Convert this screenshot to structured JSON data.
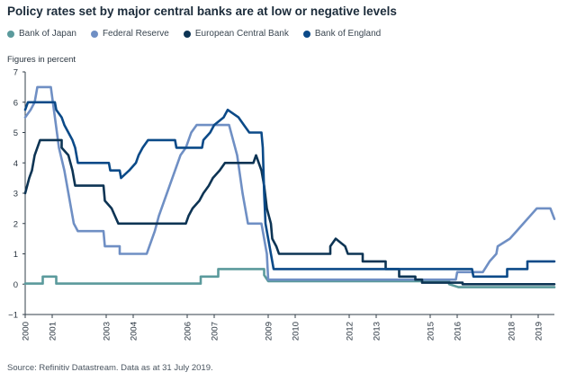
{
  "title": "Policy rates set by major central banks are at low or negative levels",
  "ylabel_note": "Figures in percent",
  "source": "Source: Refinitiv Datastream. Data as at 31 July 2019.",
  "legend": [
    {
      "name": "Bank of Japan",
      "color": "#5b9a9c"
    },
    {
      "name": "Federal Reserve",
      "color": "#6f8fc4"
    },
    {
      "name": "European Central Bank",
      "color": "#0d3454"
    },
    {
      "name": "Bank of England",
      "color": "#0b4a88"
    }
  ],
  "chart_data": {
    "type": "line",
    "ylim": [
      -1,
      7
    ],
    "yticks": [
      -1,
      0,
      1,
      2,
      3,
      4,
      5,
      6,
      7
    ],
    "ytick_labels": [
      "−1",
      "0",
      "1",
      "2",
      "3",
      "4",
      "5",
      "6",
      "7"
    ],
    "xlim": [
      2000,
      2019.6
    ],
    "xticks": [
      2000,
      2001,
      2003,
      2004,
      2006,
      2007,
      2009,
      2010,
      2012,
      2013,
      2015,
      2016,
      2018,
      2019
    ],
    "xtick_labels": [
      "2000",
      "2001",
      "2003",
      "2004",
      "2006",
      "2007",
      "2009",
      "2010",
      "2012",
      "2013",
      "2015",
      "2016",
      "2018",
      "2019"
    ],
    "grid": false,
    "legend_position": "top",
    "series": [
      {
        "name": "Bank of Japan",
        "color": "#5b9a9c",
        "points": [
          [
            2000.0,
            0.02
          ],
          [
            2000.65,
            0.02
          ],
          [
            2000.65,
            0.25
          ],
          [
            2001.15,
            0.25
          ],
          [
            2001.15,
            0.02
          ],
          [
            2006.5,
            0.02
          ],
          [
            2006.5,
            0.25
          ],
          [
            2007.15,
            0.25
          ],
          [
            2007.15,
            0.5
          ],
          [
            2008.85,
            0.5
          ],
          [
            2008.85,
            0.3
          ],
          [
            2009.0,
            0.1
          ],
          [
            2015.7,
            0.1
          ],
          [
            2015.7,
            0.0
          ],
          [
            2016.05,
            -0.1
          ],
          [
            2019.6,
            -0.1
          ]
        ]
      },
      {
        "name": "Federal Reserve",
        "color": "#6f8fc4",
        "points": [
          [
            2000.0,
            5.5
          ],
          [
            2000.2,
            5.75
          ],
          [
            2000.35,
            6.0
          ],
          [
            2000.45,
            6.5
          ],
          [
            2000.95,
            6.5
          ],
          [
            2001.1,
            5.5
          ],
          [
            2001.25,
            4.5
          ],
          [
            2001.45,
            3.75
          ],
          [
            2001.6,
            3.0
          ],
          [
            2001.8,
            2.0
          ],
          [
            2001.95,
            1.75
          ],
          [
            2002.9,
            1.75
          ],
          [
            2002.95,
            1.25
          ],
          [
            2003.5,
            1.25
          ],
          [
            2003.5,
            1.0
          ],
          [
            2004.5,
            1.0
          ],
          [
            2004.6,
            1.25
          ],
          [
            2004.8,
            1.75
          ],
          [
            2004.95,
            2.25
          ],
          [
            2005.15,
            2.75
          ],
          [
            2005.35,
            3.25
          ],
          [
            2005.55,
            3.75
          ],
          [
            2005.75,
            4.25
          ],
          [
            2005.95,
            4.5
          ],
          [
            2006.15,
            5.0
          ],
          [
            2006.35,
            5.25
          ],
          [
            2007.55,
            5.25
          ],
          [
            2007.7,
            4.75
          ],
          [
            2007.85,
            4.25
          ],
          [
            2008.05,
            3.0
          ],
          [
            2008.25,
            2.0
          ],
          [
            2008.75,
            2.0
          ],
          [
            2008.85,
            1.5
          ],
          [
            2008.95,
            1.0
          ],
          [
            2009.0,
            0.15
          ],
          [
            2015.95,
            0.15
          ],
          [
            2016.0,
            0.4
          ],
          [
            2016.95,
            0.4
          ],
          [
            2017.2,
            0.75
          ],
          [
            2017.45,
            1.0
          ],
          [
            2017.5,
            1.25
          ],
          [
            2017.95,
            1.5
          ],
          [
            2018.2,
            1.75
          ],
          [
            2018.45,
            2.0
          ],
          [
            2018.7,
            2.25
          ],
          [
            2018.95,
            2.5
          ],
          [
            2019.45,
            2.5
          ],
          [
            2019.6,
            2.15
          ]
        ]
      },
      {
        "name": "European Central Bank",
        "color": "#0d3454",
        "points": [
          [
            2000.0,
            3.0
          ],
          [
            2000.15,
            3.5
          ],
          [
            2000.25,
            3.75
          ],
          [
            2000.35,
            4.25
          ],
          [
            2000.55,
            4.75
          ],
          [
            2000.8,
            4.75
          ],
          [
            2001.35,
            4.75
          ],
          [
            2001.35,
            4.5
          ],
          [
            2001.6,
            4.25
          ],
          [
            2001.75,
            3.75
          ],
          [
            2001.85,
            3.25
          ],
          [
            2002.9,
            3.25
          ],
          [
            2002.95,
            2.75
          ],
          [
            2003.2,
            2.5
          ],
          [
            2003.45,
            2.0
          ],
          [
            2005.95,
            2.0
          ],
          [
            2006.05,
            2.25
          ],
          [
            2006.2,
            2.5
          ],
          [
            2006.45,
            2.75
          ],
          [
            2006.6,
            3.0
          ],
          [
            2006.8,
            3.25
          ],
          [
            2006.95,
            3.5
          ],
          [
            2007.2,
            3.75
          ],
          [
            2007.4,
            4.0
          ],
          [
            2008.45,
            4.0
          ],
          [
            2008.55,
            4.25
          ],
          [
            2008.75,
            3.75
          ],
          [
            2008.85,
            3.25
          ],
          [
            2008.95,
            2.5
          ],
          [
            2009.1,
            2.0
          ],
          [
            2009.15,
            1.5
          ],
          [
            2009.3,
            1.25
          ],
          [
            2009.4,
            1.0
          ],
          [
            2011.3,
            1.0
          ],
          [
            2011.3,
            1.25
          ],
          [
            2011.5,
            1.5
          ],
          [
            2011.85,
            1.25
          ],
          [
            2011.95,
            1.0
          ],
          [
            2012.5,
            1.0
          ],
          [
            2012.5,
            0.75
          ],
          [
            2013.35,
            0.75
          ],
          [
            2013.35,
            0.5
          ],
          [
            2013.85,
            0.5
          ],
          [
            2013.85,
            0.25
          ],
          [
            2014.45,
            0.25
          ],
          [
            2014.45,
            0.15
          ],
          [
            2014.7,
            0.15
          ],
          [
            2014.7,
            0.05
          ],
          [
            2016.2,
            0.05
          ],
          [
            2016.2,
            0.0
          ],
          [
            2019.6,
            0.0
          ]
        ]
      },
      {
        "name": "Bank of England",
        "color": "#0b4a88",
        "points": [
          [
            2000.0,
            5.75
          ],
          [
            2000.1,
            6.0
          ],
          [
            2001.1,
            6.0
          ],
          [
            2001.15,
            5.75
          ],
          [
            2001.35,
            5.5
          ],
          [
            2001.45,
            5.25
          ],
          [
            2001.6,
            5.0
          ],
          [
            2001.75,
            4.75
          ],
          [
            2001.85,
            4.5
          ],
          [
            2001.95,
            4.0
          ],
          [
            2003.1,
            4.0
          ],
          [
            2003.15,
            3.75
          ],
          [
            2003.5,
            3.75
          ],
          [
            2003.55,
            3.5
          ],
          [
            2003.85,
            3.75
          ],
          [
            2004.1,
            4.0
          ],
          [
            2004.2,
            4.25
          ],
          [
            2004.35,
            4.5
          ],
          [
            2004.55,
            4.75
          ],
          [
            2005.55,
            4.75
          ],
          [
            2005.6,
            4.5
          ],
          [
            2006.55,
            4.5
          ],
          [
            2006.6,
            4.75
          ],
          [
            2006.85,
            5.0
          ],
          [
            2007.0,
            5.25
          ],
          [
            2007.35,
            5.5
          ],
          [
            2007.5,
            5.75
          ],
          [
            2007.9,
            5.5
          ],
          [
            2008.1,
            5.25
          ],
          [
            2008.3,
            5.0
          ],
          [
            2008.75,
            5.0
          ],
          [
            2008.8,
            4.5
          ],
          [
            2008.85,
            3.0
          ],
          [
            2008.9,
            2.0
          ],
          [
            2009.0,
            1.5
          ],
          [
            2009.1,
            1.0
          ],
          [
            2009.2,
            0.5
          ],
          [
            2016.55,
            0.5
          ],
          [
            2016.6,
            0.25
          ],
          [
            2017.85,
            0.25
          ],
          [
            2017.85,
            0.5
          ],
          [
            2018.6,
            0.5
          ],
          [
            2018.6,
            0.75
          ],
          [
            2019.6,
            0.75
          ]
        ]
      }
    ]
  }
}
